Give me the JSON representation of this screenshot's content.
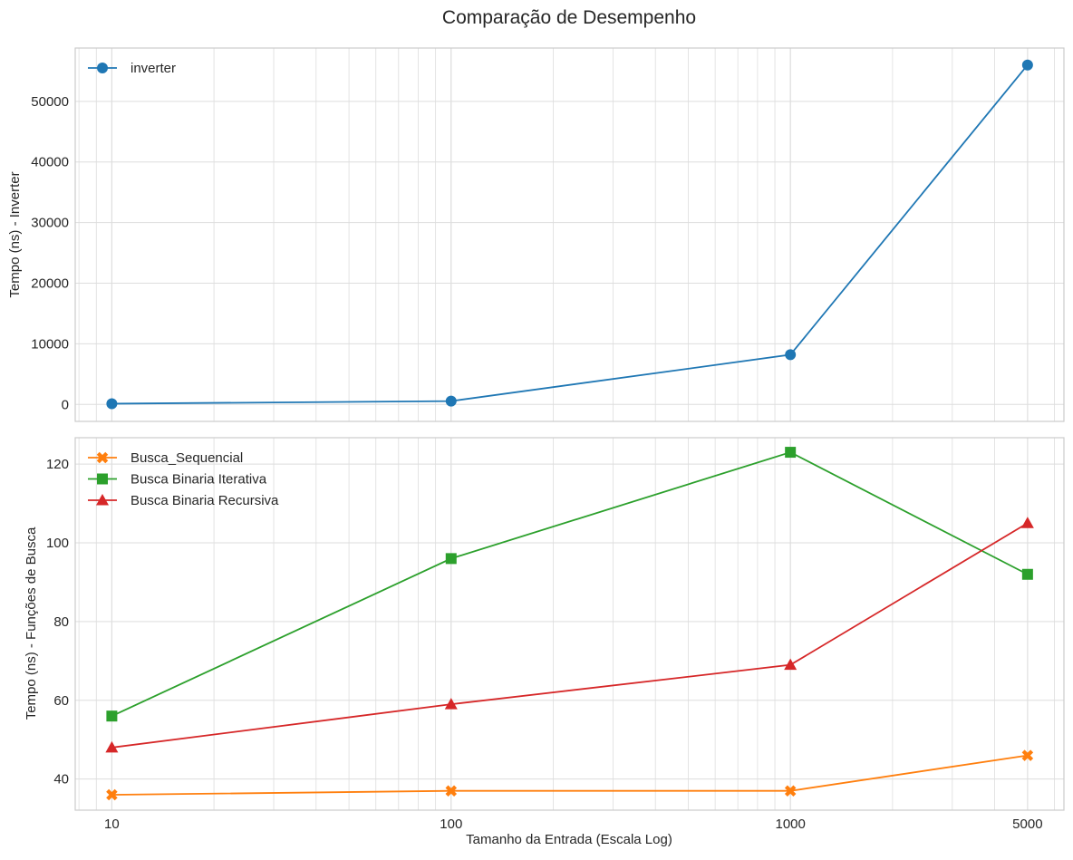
{
  "chart_data": [
    {
      "type": "line",
      "suptitle": "Comparação de Desempenho",
      "ylabel": "Tempo (ns) - Inverter",
      "xscale": "log",
      "xlim": [
        7.8,
        6400
      ],
      "ylim": [
        -2800,
        58800
      ],
      "x": [
        10,
        100,
        1000,
        5000
      ],
      "x_tick_labels": [
        "10",
        "100",
        "1000",
        "5000"
      ],
      "y_ticks": [
        0,
        10000,
        20000,
        30000,
        40000,
        50000
      ],
      "y_tick_labels": [
        "0",
        "10000",
        "20000",
        "30000",
        "40000",
        "50000"
      ],
      "grid": true,
      "legend": "top-left",
      "series": [
        {
          "name": "inverter",
          "marker": "circle",
          "color": "#1f77b4",
          "values": [
            120,
            550,
            8200,
            56000
          ]
        }
      ]
    },
    {
      "type": "line",
      "xlabel": "Tamanho da Entrada (Escala Log)",
      "ylabel": "Tempo (ns) - Funções de Busca",
      "xscale": "log",
      "xlim": [
        7.8,
        6400
      ],
      "ylim": [
        32.1,
        126.7
      ],
      "x": [
        10,
        100,
        1000,
        5000
      ],
      "x_tick_labels": [
        "10",
        "100",
        "1000",
        "5000"
      ],
      "y_ticks": [
        40,
        60,
        80,
        100,
        120
      ],
      "y_tick_labels": [
        "40",
        "60",
        "80",
        "100",
        "120"
      ],
      "grid": true,
      "legend": "top-left",
      "series": [
        {
          "name": "Busca_Sequencial",
          "marker": "x-filled",
          "color": "#ff7f0e",
          "values": [
            36,
            37,
            37,
            46
          ]
        },
        {
          "name": "Busca Binaria Iterativa",
          "marker": "square",
          "color": "#2ca02c",
          "values": [
            56,
            96,
            123,
            92
          ]
        },
        {
          "name": "Busca Binaria Recursiva",
          "marker": "triangle",
          "color": "#d62728",
          "values": [
            48,
            59,
            69,
            105
          ]
        }
      ]
    }
  ]
}
